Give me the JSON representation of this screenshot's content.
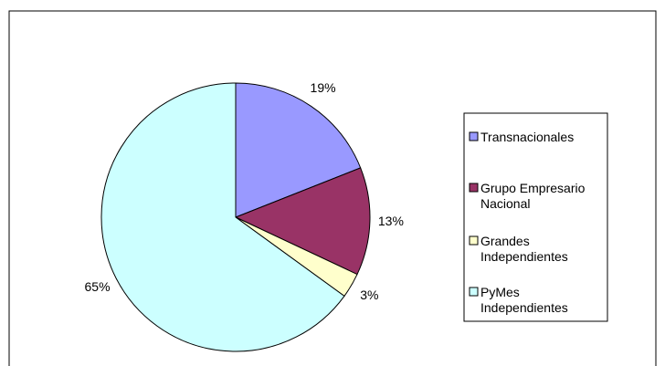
{
  "chart_data": {
    "type": "pie",
    "categories": [
      "Transnacionales",
      "Grupo Empresario Nacional",
      "Grandes Independientes",
      "PyMes Independientes"
    ],
    "values": [
      19,
      13,
      3,
      65
    ],
    "value_labels": [
      "19%",
      "13%",
      "3%",
      "65%"
    ],
    "colors": [
      "#9999ff",
      "#993366",
      "#ffffcc",
      "#ccffff"
    ],
    "legend": "right"
  }
}
